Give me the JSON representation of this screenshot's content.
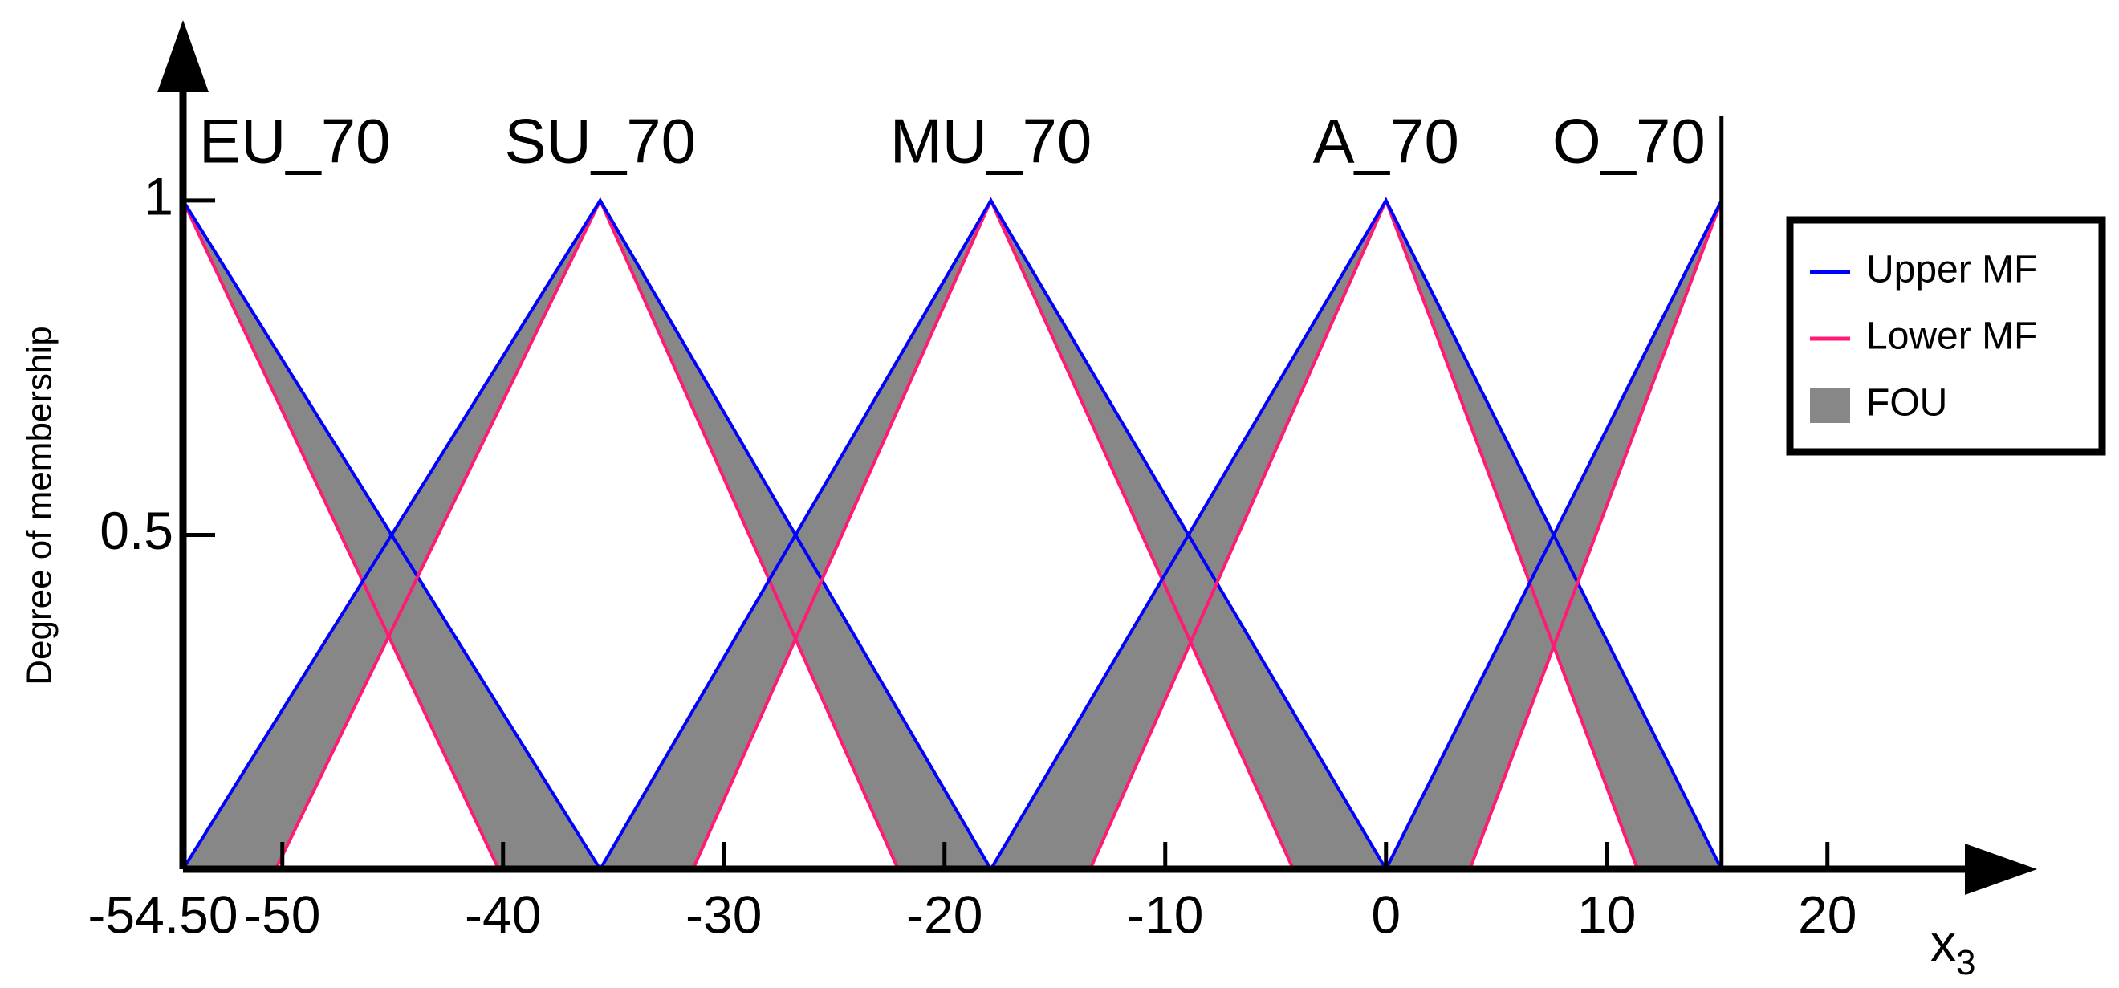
{
  "chart_data": {
    "type": "line",
    "ylabel": "Degree of membership",
    "xlabel": "x",
    "xlabel_sub": "3",
    "xlim": [
      -54.5,
      29.5
    ],
    "ylim": [
      0,
      1.27
    ],
    "xticks": [
      {
        "value": -54.5,
        "label": "-54.50"
      },
      -50,
      -40,
      -30,
      -20,
      -10,
      0,
      10,
      20
    ],
    "yticks": [
      0.5,
      1
    ],
    "legend": "upper right",
    "series": [
      {
        "name": "Upper MF",
        "color": "#0000ff"
      },
      {
        "name": "Lower MF",
        "color": "#ff1a75"
      },
      {
        "name": "FOU",
        "color": "#878787"
      }
    ],
    "mfs": [
      {
        "label": "EU_70",
        "upper": {
          "x": [
            -54.5,
            -35.6
          ],
          "y": [
            1,
            0
          ]
        },
        "lower": {
          "x": [
            -54.5,
            -40.2
          ],
          "y": [
            1,
            0
          ]
        }
      },
      {
        "label": "SU_70",
        "upper": {
          "x": [
            -54.5,
            -35.6,
            -17.9
          ],
          "y": [
            0,
            1,
            0
          ]
        },
        "lower": {
          "x": [
            -50.3,
            -35.6,
            -22.1
          ],
          "y": [
            0,
            1,
            0
          ]
        }
      },
      {
        "label": "MU_70",
        "upper": {
          "x": [
            -35.6,
            -17.9,
            0
          ],
          "y": [
            0,
            1,
            0
          ]
        },
        "lower": {
          "x": [
            -31.4,
            -17.9,
            -4.2
          ],
          "y": [
            0,
            1,
            0
          ]
        }
      },
      {
        "label": "A_70",
        "upper": {
          "x": [
            -17.9,
            0,
            15.2
          ],
          "y": [
            0,
            1,
            0
          ]
        },
        "lower": {
          "x": [
            -13.4,
            0,
            11.4
          ],
          "y": [
            0,
            1,
            0
          ]
        }
      },
      {
        "label": "O_70",
        "upper": {
          "x": [
            0,
            15.2
          ],
          "y": [
            0,
            1
          ]
        },
        "lower": {
          "x": [
            3.8,
            15.2
          ],
          "y": [
            0,
            1
          ]
        }
      }
    ]
  }
}
